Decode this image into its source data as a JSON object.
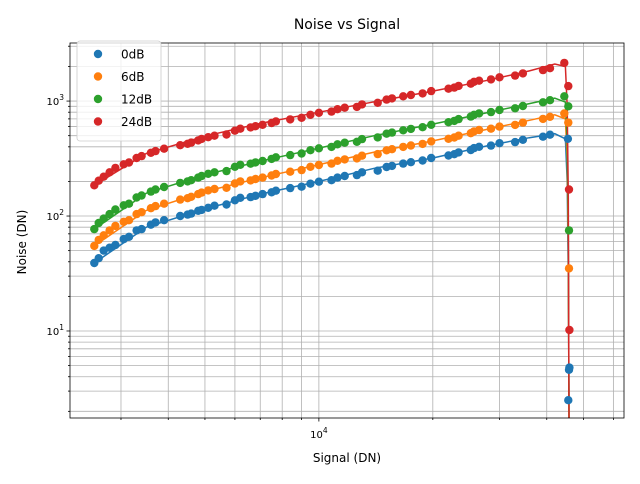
{
  "chart_data": {
    "type": "scatter",
    "title": "Noise vs Signal",
    "xlabel": "Signal (DN)",
    "ylabel": "Noise (DN)",
    "xscale": "log",
    "yscale": "log",
    "xlim": [
      2200,
      64000
    ],
    "ylim": [
      1.75,
      3200
    ],
    "x_ticks": [
      {
        "value": 10000,
        "label": "10^4"
      }
    ],
    "y_ticks": [
      {
        "value": 10,
        "label": "10^1"
      },
      {
        "value": 100,
        "label": "10^2"
      },
      {
        "value": 1000,
        "label": "10^3"
      }
    ],
    "grid": true,
    "legend_position": "top-left",
    "series": [
      {
        "name": "0dB",
        "color": "#1f77b4",
        "x": [
          2550,
          2620,
          2700,
          2800,
          2900,
          3050,
          3150,
          3300,
          3400,
          3600,
          3700,
          3900,
          4300,
          4500,
          4600,
          4800,
          4900,
          5100,
          5300,
          5700,
          6000,
          6200,
          6600,
          6800,
          7100,
          7500,
          7700,
          8400,
          9000,
          9500,
          10000,
          10800,
          11200,
          11700,
          12600,
          13000,
          14300,
          15100,
          15600,
          16700,
          17500,
          18800,
          19800,
          22000,
          22800,
          23400,
          25200,
          25700,
          26500,
          28500,
          30000,
          33000,
          34600,
          39100,
          40800,
          45500,
          45600,
          45800,
          45900
        ],
        "y": [
          39,
          43,
          50,
          53,
          56,
          63,
          66,
          75,
          77,
          84,
          88,
          92,
          100,
          103,
          105,
          111,
          113,
          118,
          123,
          126,
          137,
          144,
          146,
          150,
          155,
          161,
          166,
          175,
          180,
          191,
          199,
          205,
          216,
          223,
          227,
          240,
          248,
          267,
          273,
          286,
          294,
          304,
          320,
          336,
          345,
          358,
          375,
          390,
          400,
          410,
          430,
          440,
          460,
          490,
          510,
          470,
          2.5,
          4.6,
          4.8
        ],
        "line": [
          [
            2550,
            39
          ],
          [
            3500,
            80
          ],
          [
            5000,
            115
          ],
          [
            7000,
            155
          ],
          [
            10000,
            200
          ],
          [
            14000,
            260
          ],
          [
            20000,
            320
          ],
          [
            28000,
            410
          ],
          [
            36000,
            480
          ],
          [
            42000,
            520
          ],
          [
            44800,
            470
          ],
          [
            45300,
            200
          ],
          [
            45600,
            30
          ],
          [
            45800,
            2.5
          ]
        ]
      },
      {
        "name": "6dB",
        "color": "#ff7f0e",
        "x": [
          2550,
          2620,
          2700,
          2800,
          2900,
          3050,
          3150,
          3300,
          3400,
          3600,
          3700,
          3900,
          4300,
          4500,
          4600,
          4800,
          4900,
          5100,
          5300,
          5700,
          6000,
          6200,
          6600,
          6800,
          7100,
          7500,
          7700,
          8400,
          9000,
          9500,
          10000,
          10800,
          11200,
          11700,
          12600,
          13000,
          14300,
          15100,
          15600,
          16700,
          17500,
          18800,
          19800,
          22000,
          22800,
          23400,
          25200,
          25700,
          26500,
          28500,
          30000,
          33000,
          34600,
          39100,
          40800,
          44500,
          45600,
          45800
        ],
        "y": [
          55,
          62,
          68,
          75,
          82,
          89,
          92,
          104,
          108,
          117,
          122,
          128,
          139,
          143,
          147,
          155,
          160,
          167,
          172,
          176,
          192,
          200,
          204,
          210,
          216,
          225,
          232,
          243,
          251,
          268,
          278,
          286,
          302,
          311,
          317,
          335,
          346,
          373,
          381,
          399,
          411,
          424,
          446,
          470,
          482,
          500,
          525,
          545,
          560,
          575,
          600,
          620,
          650,
          700,
          730,
          780,
          650,
          35
        ],
        "line": [
          [
            2550,
            55
          ],
          [
            3500,
            112
          ],
          [
            5000,
            163
          ],
          [
            7000,
            215
          ],
          [
            10000,
            280
          ],
          [
            14000,
            360
          ],
          [
            20000,
            450
          ],
          [
            28000,
            570
          ],
          [
            36000,
            680
          ],
          [
            42000,
            760
          ],
          [
            44800,
            700
          ],
          [
            45300,
            300
          ],
          [
            45600,
            50
          ],
          [
            45800,
            1.75
          ]
        ]
      },
      {
        "name": "12dB",
        "color": "#2ca02c",
        "x": [
          2550,
          2620,
          2700,
          2800,
          2900,
          3050,
          3150,
          3300,
          3400,
          3600,
          3700,
          3900,
          4300,
          4500,
          4600,
          4800,
          4900,
          5100,
          5300,
          5700,
          6000,
          6200,
          6600,
          6800,
          7100,
          7500,
          7700,
          8400,
          9000,
          9500,
          10000,
          10800,
          11200,
          11700,
          12600,
          13000,
          14300,
          15100,
          15600,
          16700,
          17500,
          18800,
          19800,
          22000,
          22800,
          23400,
          25200,
          25700,
          26500,
          28500,
          30000,
          33000,
          34600,
          39100,
          40800,
          44500,
          45600,
          45800
        ],
        "y": [
          77,
          87,
          95,
          104,
          114,
          124,
          128,
          145,
          151,
          163,
          170,
          179,
          194,
          200,
          205,
          216,
          223,
          233,
          240,
          246,
          268,
          279,
          285,
          293,
          301,
          314,
          324,
          339,
          350,
          374,
          388,
          399,
          421,
          434,
          442,
          467,
          483,
          520,
          532,
          557,
          573,
          592,
          622,
          655,
          672,
          697,
          732,
          760,
          781,
          802,
          837,
          865,
          906,
          976,
          1018,
          1100,
          900,
          75
        ],
        "line": [
          [
            2550,
            77
          ],
          [
            3500,
            158
          ],
          [
            5000,
            228
          ],
          [
            7000,
            300
          ],
          [
            10000,
            390
          ],
          [
            14000,
            500
          ],
          [
            20000,
            630
          ],
          [
            28000,
            795
          ],
          [
            36000,
            950
          ],
          [
            42000,
            1060
          ],
          [
            44800,
            980
          ],
          [
            45300,
            420
          ],
          [
            45600,
            70
          ],
          [
            45800,
            1.75
          ]
        ]
      },
      {
        "name": "24dB",
        "color": "#d62728",
        "x": [
          2550,
          2620,
          2700,
          2800,
          2900,
          3050,
          3150,
          3300,
          3400,
          3600,
          3700,
          3900,
          4300,
          4500,
          4600,
          4800,
          4900,
          5100,
          5300,
          5700,
          6000,
          6200,
          6600,
          6800,
          7100,
          7500,
          7700,
          8400,
          9000,
          9500,
          10000,
          10800,
          11200,
          11700,
          12600,
          13000,
          14300,
          15100,
          15600,
          16700,
          17500,
          18800,
          19800,
          22000,
          22800,
          23400,
          25200,
          25700,
          26500,
          28500,
          30000,
          33000,
          34600,
          39100,
          40800,
          44500,
          45600,
          45800,
          45900
        ],
        "y": [
          185,
          203,
          220,
          240,
          262,
          282,
          292,
          320,
          332,
          355,
          367,
          385,
          413,
          425,
          435,
          455,
          469,
          485,
          500,
          512,
          552,
          575,
          590,
          605,
          622,
          645,
          665,
          693,
          715,
          760,
          790,
          810,
          850,
          875,
          890,
          935,
          965,
          1030,
          1055,
          1100,
          1130,
          1165,
          1220,
          1280,
          1310,
          1355,
          1415,
          1470,
          1505,
          1545,
          1610,
          1665,
          1740,
          1860,
          1930,
          2150,
          1350,
          170,
          10.2
        ],
        "line": [
          [
            2550,
            185
          ],
          [
            3500,
            350
          ],
          [
            5000,
            495
          ],
          [
            7000,
            640
          ],
          [
            10000,
            800
          ],
          [
            14000,
            985
          ],
          [
            20000,
            1220
          ],
          [
            28000,
            1520
          ],
          [
            36000,
            1830
          ],
          [
            42000,
            2100
          ],
          [
            44800,
            2000
          ],
          [
            45300,
            900
          ],
          [
            45600,
            150
          ],
          [
            45800,
            1.75
          ]
        ]
      }
    ]
  }
}
